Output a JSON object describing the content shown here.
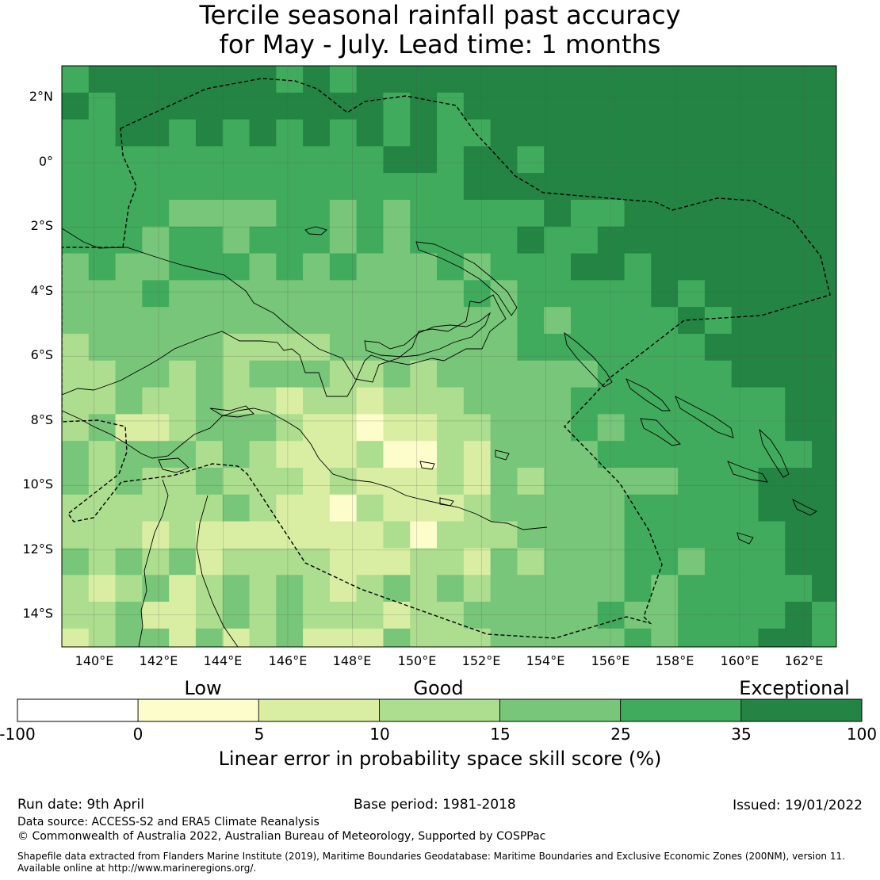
{
  "title": {
    "line1": "Tercile seasonal rainfall past accuracy",
    "line2": "for May - July. Lead time: 1 months"
  },
  "map": {
    "lat_labels": [
      "2°N",
      "0°",
      "2°S",
      "4°S",
      "6°S",
      "8°S",
      "10°S",
      "12°S",
      "14°S"
    ],
    "lon_labels": [
      "140°E",
      "142°E",
      "144°E",
      "146°E",
      "148°E",
      "150°E",
      "152°E",
      "154°E",
      "156°E",
      "158°E",
      "160°E",
      "162°E"
    ],
    "lat_range": [
      -15,
      3
    ],
    "lon_range": [
      139,
      163
    ],
    "grid_resolution_deg": 0.83,
    "high_skill_region": "northeast, north of New Ireland and Bougainville",
    "eez_boundary": "dashed",
    "coastline": "solid"
  },
  "colorbar": {
    "categories": [
      "Low",
      "Good",
      "Exceptional"
    ],
    "ticks": [
      "-100",
      "0",
      "5",
      "10",
      "15",
      "25",
      "35",
      "100"
    ],
    "colors": [
      "#ffffff",
      "#fdfdcc",
      "#d9eea3",
      "#addd8e",
      "#78c679",
      "#41ab5d",
      "#238443"
    ],
    "label": "Linear error in probability space skill score (%)"
  },
  "footer": {
    "run_date": "Run date: 9th April",
    "base_period": "Base period: 1981-2018",
    "issued": "Issued: 19/01/2022",
    "data_source": "Data source: ACCESS-S2 and ERA5 Climate Reanalysis",
    "copyright": "© Commonwealth of Australia 2022, Australian Bureau of Meteorology, Supported by COSPPac",
    "shapefile_line1": "Shapefile data extracted from Flanders Marine Institute (2019), Maritime Boundaries Geodatabase: Maritime Boundaries and Exclusive Economic Zones (200NM), version 11.",
    "shapefile_line2": "Available online at http://www.marineregions.org/."
  }
}
